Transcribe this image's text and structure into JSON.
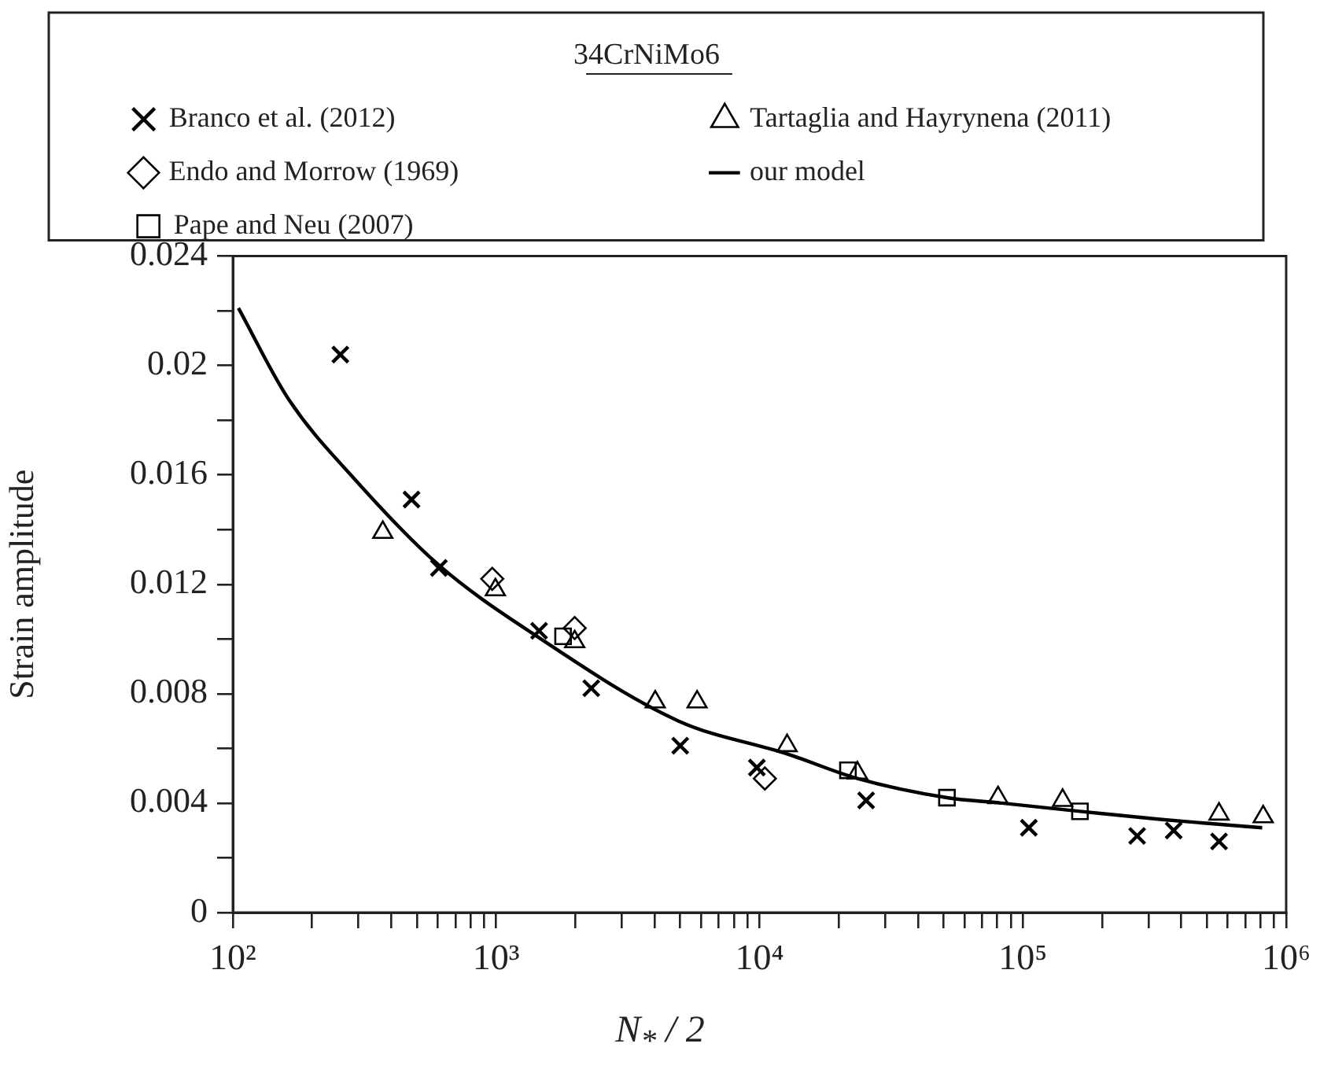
{
  "chart_data": {
    "type": "scatter",
    "xlabel": "N$_{*}$ / 2",
    "ylabel": "Strain amplitude",
    "legend_title": "34CrNiMo6",
    "legend": "top",
    "log": "x",
    "grid": false,
    "xlim": [
      100,
      1000000
    ],
    "ylim": [
      0,
      0.024
    ],
    "xticks": [
      {
        "value": 100,
        "label": "10²"
      },
      {
        "value": 200,
        "label": null
      },
      {
        "value": 300,
        "label": null
      },
      {
        "value": 400,
        "label": null
      },
      {
        "value": 500,
        "label": null
      },
      {
        "value": 600,
        "label": null
      },
      {
        "value": 700,
        "label": null
      },
      {
        "value": 800,
        "label": null
      },
      {
        "value": 900,
        "label": null
      },
      {
        "value": 1000,
        "label": "10³"
      },
      {
        "value": 2000,
        "label": null
      },
      {
        "value": 3000,
        "label": null
      },
      {
        "value": 4000,
        "label": null
      },
      {
        "value": 5000,
        "label": null
      },
      {
        "value": 6000,
        "label": null
      },
      {
        "value": 7000,
        "label": null
      },
      {
        "value": 8000,
        "label": null
      },
      {
        "value": 9000,
        "label": null
      },
      {
        "value": 10000,
        "label": "10⁴"
      },
      {
        "value": 20000,
        "label": null
      },
      {
        "value": 30000,
        "label": null
      },
      {
        "value": 40000,
        "label": null
      },
      {
        "value": 50000,
        "label": null
      },
      {
        "value": 60000,
        "label": null
      },
      {
        "value": 70000,
        "label": null
      },
      {
        "value": 80000,
        "label": null
      },
      {
        "value": 90000,
        "label": null
      },
      {
        "value": 100000,
        "label": "10⁵"
      },
      {
        "value": 200000,
        "label": null
      },
      {
        "value": 300000,
        "label": null
      },
      {
        "value": 400000,
        "label": null
      },
      {
        "value": 500000,
        "label": null
      },
      {
        "value": 600000,
        "label": null
      },
      {
        "value": 700000,
        "label": null
      },
      {
        "value": 800000,
        "label": null
      },
      {
        "value": 900000,
        "label": null
      },
      {
        "value": 1000000,
        "label": "10⁶"
      }
    ],
    "yticks": [
      0,
      {
        "value": 0.002,
        "label": null
      },
      0.004,
      {
        "value": 0.006,
        "label": null
      },
      0.008,
      {
        "value": 0.01,
        "label": null
      },
      0.012,
      {
        "value": 0.014,
        "label": null
      },
      0.016,
      {
        "value": 0.018,
        "label": null
      },
      0.02,
      {
        "value": 0.022,
        "label": null
      },
      0.024
    ],
    "series": [
      {
        "name": "Branco et al. (2012)",
        "color": "#000000",
        "marker": "cross",
        "x": [
          256,
          477,
          606,
          1455,
          2297,
          5000,
          9770,
          25400,
          105400,
          271700,
          374000,
          556000
        ],
        "values": [
          0.0204,
          0.0151,
          0.0126,
          0.0103,
          0.0082,
          0.0061,
          0.0053,
          0.0041,
          0.0031,
          0.0028,
          0.003,
          0.0026
        ]
      },
      {
        "name": "Endo and Morrow (1969)",
        "color": "#000000",
        "marker": "diamond",
        "x": [
          966,
          1987,
          10480
        ],
        "values": [
          0.0122,
          0.0104,
          0.0049
        ]
      },
      {
        "name": "Pape and Neu (2007)",
        "color": "#000000",
        "marker": "square",
        "x": [
          1795,
          21670,
          51500,
          164800
        ],
        "values": [
          0.0101,
          0.0052,
          0.0042,
          0.0037
        ]
      },
      {
        "name": "Tartaglia and Hayrynena (2011)",
        "color": "#000000",
        "marker": "triangle",
        "x": [
          371,
          993,
          1987,
          4018,
          5794,
          12730,
          23540,
          80500,
          141600,
          555900,
          818000
        ],
        "values": [
          0.0139,
          0.0118,
          0.0099,
          0.0077,
          0.0077,
          0.0061,
          0.0051,
          0.0042,
          0.0041,
          0.0036,
          0.0035
        ]
      },
      {
        "name": "our model",
        "type": "line",
        "color": "#000000",
        "marker": "none",
        "line_style": "solid",
        "x": [
          105,
          162,
          293,
          606,
          1377,
          4935,
          12730,
          23540,
          51500,
          83200,
          164800,
          337000,
          811000
        ],
        "values": [
          0.0221,
          0.0188,
          0.0158,
          0.0127,
          0.0102,
          0.007,
          0.0058,
          0.0049,
          0.0042,
          0.004,
          0.0037,
          0.0034,
          0.0031
        ]
      }
    ]
  }
}
